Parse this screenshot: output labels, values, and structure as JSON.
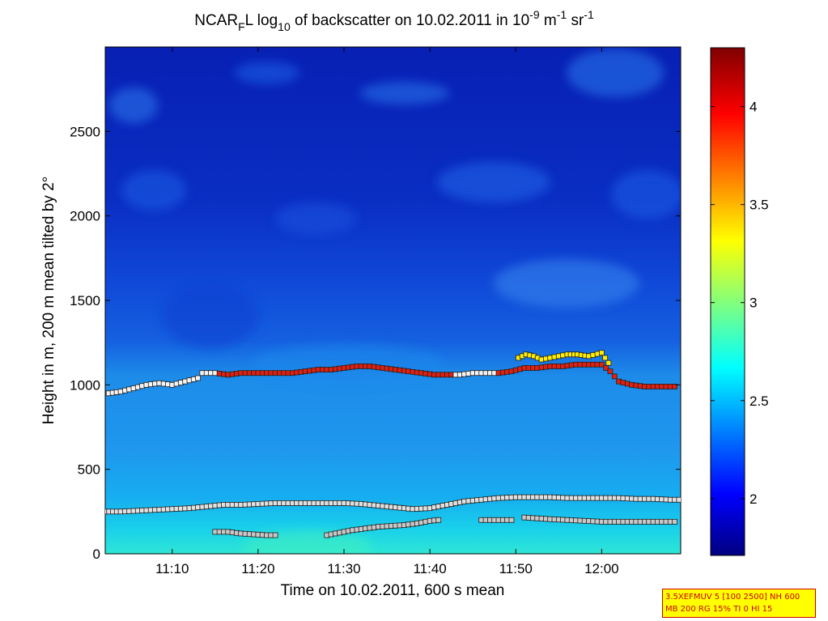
{
  "chart_data": {
    "type": "heatmap",
    "title_parts": {
      "a": "NCAR",
      "a_sub": "F",
      "b": "L log",
      "b_sub": "10",
      "c": " of backscatter on 10.02.2011 in 10",
      "c_sup": "-9",
      "d": " m",
      "d_sup": "-1",
      "e": " sr",
      "e_sup": "-1"
    },
    "xlabel": "Time on 10.02.2011, 600 s mean",
    "ylabel": "Height in m, 200 m mean tilted by 2°",
    "x_ticks": [
      "11:10",
      "11:20",
      "11:30",
      "11:40",
      "11:50",
      "12:00"
    ],
    "x_tick_minutes": [
      670,
      680,
      690,
      700,
      710,
      720
    ],
    "xlim_minutes": [
      662.2,
      729.2
    ],
    "y_ticks": [
      0,
      500,
      1000,
      1500,
      2000,
      2500
    ],
    "ylim": [
      0,
      3000
    ],
    "colorbar": {
      "ticks": [
        2,
        2.5,
        3,
        3.5,
        4
      ],
      "tick_labels": [
        "2",
        "2.5",
        "3",
        "3.5",
        "4"
      ],
      "clim": [
        1.71,
        4.3
      ],
      "colormap": "jet"
    },
    "layers": [
      {
        "name": "boundary",
        "points": [
          [
            662.6,
            950
          ],
          [
            664,
            960
          ],
          [
            665.5,
            980
          ],
          [
            667,
            1000
          ],
          [
            668.5,
            1010
          ],
          [
            670,
            1000
          ],
          [
            671.5,
            1020
          ],
          [
            673,
            1040
          ],
          [
            673.5,
            1070
          ],
          [
            675,
            1070
          ],
          [
            676.5,
            1060
          ],
          [
            678,
            1070
          ],
          [
            679.5,
            1070
          ],
          [
            681,
            1070
          ],
          [
            682.5,
            1070
          ],
          [
            684,
            1070
          ],
          [
            685.5,
            1080
          ],
          [
            687,
            1090
          ],
          [
            688.5,
            1090
          ],
          [
            690,
            1100
          ],
          [
            691.5,
            1110
          ],
          [
            693,
            1110
          ],
          [
            694.5,
            1100
          ],
          [
            696,
            1090
          ],
          [
            697.5,
            1080
          ],
          [
            699,
            1070
          ],
          [
            700.5,
            1060
          ],
          [
            702,
            1060
          ],
          [
            703.5,
            1060
          ],
          [
            705,
            1070
          ],
          [
            706.5,
            1070
          ],
          [
            708,
            1070
          ],
          [
            709.5,
            1080
          ],
          [
            711,
            1100
          ],
          [
            712.5,
            1100
          ],
          [
            714,
            1110
          ],
          [
            715.5,
            1110
          ],
          [
            717,
            1120
          ],
          [
            718.5,
            1120
          ],
          [
            720,
            1120
          ],
          [
            721,
            1080
          ],
          [
            722,
            1020
          ],
          [
            723.5,
            1000
          ],
          [
            725,
            990
          ],
          [
            726.5,
            990
          ],
          [
            728.5,
            990
          ]
        ]
      },
      {
        "name": "upper-points",
        "points": [
          [
            710.3,
            1160
          ],
          [
            711.2,
            1180
          ],
          [
            712.1,
            1170
          ],
          [
            713,
            1150
          ],
          [
            716,
            1180
          ],
          [
            717.2,
            1180
          ],
          [
            718.5,
            1170
          ],
          [
            720,
            1190
          ],
          [
            720.8,
            1130
          ]
        ]
      },
      {
        "name": "surface-layer",
        "points": [
          [
            662.2,
            250
          ],
          [
            664,
            250
          ],
          [
            666,
            255
          ],
          [
            668,
            260
          ],
          [
            670,
            265
          ],
          [
            672,
            270
          ],
          [
            674,
            280
          ],
          [
            676,
            290
          ],
          [
            678,
            290
          ],
          [
            680,
            295
          ],
          [
            682,
            300
          ],
          [
            684,
            300
          ],
          [
            686,
            300
          ],
          [
            688,
            300
          ],
          [
            690,
            300
          ],
          [
            692,
            295
          ],
          [
            694,
            285
          ],
          [
            696,
            275
          ],
          [
            698,
            265
          ],
          [
            700,
            270
          ],
          [
            702,
            290
          ],
          [
            704,
            310
          ],
          [
            706,
            320
          ],
          [
            708,
            330
          ],
          [
            710,
            335
          ],
          [
            712,
            335
          ],
          [
            714,
            335
          ],
          [
            716,
            330
          ],
          [
            718,
            330
          ],
          [
            720,
            330
          ],
          [
            722,
            330
          ],
          [
            724,
            325
          ],
          [
            726,
            325
          ],
          [
            728,
            320
          ],
          [
            729,
            320
          ]
        ]
      },
      {
        "name": "lower-segment-a",
        "points": [
          [
            675,
            130
          ],
          [
            676.5,
            130
          ],
          [
            678,
            120
          ],
          [
            679.5,
            115
          ],
          [
            681,
            110
          ],
          [
            682,
            110
          ]
        ]
      },
      {
        "name": "lower-segment-b",
        "points": [
          [
            688,
            110
          ],
          [
            689.5,
            125
          ],
          [
            691,
            140
          ],
          [
            692.5,
            150
          ],
          [
            694,
            160
          ],
          [
            695.5,
            165
          ],
          [
            697,
            170
          ],
          [
            698.5,
            180
          ],
          [
            700,
            195
          ],
          [
            701,
            200
          ]
        ]
      },
      {
        "name": "lower-segment-c",
        "points": [
          [
            706,
            200
          ],
          [
            708,
            200
          ],
          [
            709.5,
            200
          ]
        ]
      },
      {
        "name": "lower-segment-d",
        "points": [
          [
            711,
            215
          ],
          [
            712.5,
            210
          ],
          [
            714,
            205
          ],
          [
            716,
            200
          ],
          [
            718,
            195
          ],
          [
            720,
            190
          ],
          [
            722,
            190
          ],
          [
            724,
            190
          ],
          [
            726,
            190
          ],
          [
            728.5,
            190
          ]
        ]
      }
    ],
    "background_description_levels": [
      {
        "y_from": 0,
        "y_to": 150,
        "value": 2.85
      },
      {
        "y_from": 150,
        "y_to": 380,
        "value": 2.65
      },
      {
        "y_from": 380,
        "y_to": 1000,
        "value": 2.42
      },
      {
        "y_from": 1000,
        "y_to": 1500,
        "value": 2.22
      },
      {
        "y_from": 1500,
        "y_to": 2000,
        "value": 1.98
      },
      {
        "y_from": 2000,
        "y_to": 3000,
        "value": 1.8
      }
    ]
  },
  "info_box": {
    "line1": "3.5XEFMUV 5 [100 2500] NH 600",
    "line2": "MB 200 RG 15% TI 0 HI 15"
  }
}
